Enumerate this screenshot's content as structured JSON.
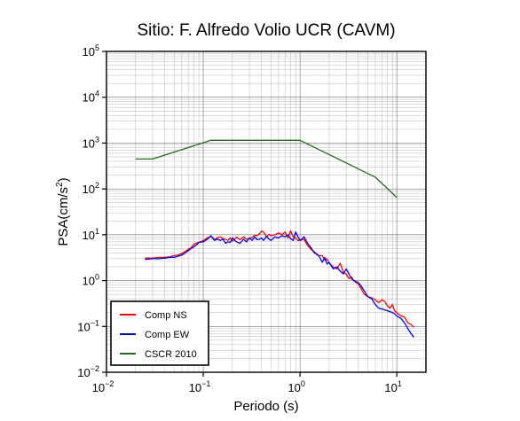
{
  "chart_data": {
    "type": "line",
    "title": "Sitio: F. Alfredo Volio UCR (CAVM)",
    "xlabel": "Periodo (s)",
    "ylabel_main": "PSA(cm/s",
    "ylabel_sup": "2",
    "ylabel_close": ")",
    "x_scale": "log",
    "y_scale": "log",
    "xlim": [
      0.01,
      20
    ],
    "ylim": [
      0.01,
      100000
    ],
    "x_ticks": [
      {
        "value": 0.01,
        "base": "10",
        "exp": "−2"
      },
      {
        "value": 0.1,
        "base": "10",
        "exp": "−1"
      },
      {
        "value": 1,
        "base": "10",
        "exp": "0"
      },
      {
        "value": 10,
        "base": "10",
        "exp": "1"
      }
    ],
    "y_ticks": [
      {
        "value": 0.01,
        "base": "10",
        "exp": "−2"
      },
      {
        "value": 0.1,
        "base": "10",
        "exp": "−1"
      },
      {
        "value": 1,
        "base": "10",
        "exp": "0"
      },
      {
        "value": 10,
        "base": "10",
        "exp": "1"
      },
      {
        "value": 100,
        "base": "10",
        "exp": "2"
      },
      {
        "value": 1000,
        "base": "10",
        "exp": "3"
      },
      {
        "value": 10000,
        "base": "10",
        "exp": "4"
      },
      {
        "value": 100000,
        "base": "10",
        "exp": "5"
      }
    ],
    "grid": true,
    "legend_position": "bottom-left",
    "series": [
      {
        "name": "Comp NS",
        "color": "#ff0000",
        "x": [
          0.025,
          0.03,
          0.035,
          0.04,
          0.045,
          0.05,
          0.055,
          0.06,
          0.065,
          0.07,
          0.075,
          0.08,
          0.085,
          0.09,
          0.1,
          0.11,
          0.12,
          0.13,
          0.14,
          0.15,
          0.16,
          0.17,
          0.18,
          0.19,
          0.2,
          0.22,
          0.24,
          0.26,
          0.28,
          0.3,
          0.32,
          0.34,
          0.36,
          0.38,
          0.4,
          0.42,
          0.45,
          0.48,
          0.5,
          0.55,
          0.6,
          0.65,
          0.7,
          0.75,
          0.8,
          0.85,
          0.9,
          0.95,
          1.0,
          1.1,
          1.2,
          1.3,
          1.4,
          1.5,
          1.6,
          1.7,
          1.8,
          1.9,
          2.0,
          2.2,
          2.4,
          2.6,
          2.8,
          3.0,
          3.2,
          3.4,
          3.6,
          3.8,
          4.0,
          4.3,
          4.6,
          5.0,
          5.5,
          6.0,
          6.5,
          7.0,
          7.5,
          8.0,
          8.5,
          9.0,
          9.5,
          10.0,
          11.0,
          12.0,
          13.0,
          14.0,
          15.0
        ],
        "y": [
          3.1,
          3.1,
          3.2,
          3.2,
          3.3,
          3.5,
          3.6,
          3.9,
          4.3,
          4.8,
          5.2,
          6.2,
          6.6,
          6.8,
          7.5,
          8.5,
          9.2,
          8.0,
          8.5,
          9.0,
          8.2,
          8.0,
          7.5,
          8.5,
          7.2,
          8.8,
          7.8,
          9.0,
          8.0,
          8.2,
          8.8,
          9.8,
          9.5,
          10.5,
          12.0,
          11.5,
          9.0,
          10.2,
          9.5,
          10.0,
          11.0,
          10.0,
          11.5,
          8.5,
          12.2,
          9.0,
          8.5,
          7.5,
          7.5,
          8.0,
          5.8,
          4.8,
          4.3,
          3.6,
          3.5,
          3.5,
          2.8,
          3.0,
          2.4,
          2.0,
          1.8,
          2.4,
          1.5,
          1.4,
          1.1,
          1.2,
          1.0,
          0.9,
          0.85,
          0.65,
          0.5,
          0.45,
          0.42,
          0.38,
          0.33,
          0.38,
          0.35,
          0.28,
          0.25,
          0.3,
          0.22,
          0.2,
          0.17,
          0.16,
          0.12,
          0.11,
          0.095
        ]
      },
      {
        "name": "Comp EW",
        "color": "#0000ff",
        "x": [
          0.025,
          0.03,
          0.035,
          0.04,
          0.045,
          0.05,
          0.055,
          0.06,
          0.065,
          0.07,
          0.075,
          0.08,
          0.085,
          0.09,
          0.1,
          0.11,
          0.12,
          0.13,
          0.14,
          0.15,
          0.16,
          0.17,
          0.18,
          0.19,
          0.2,
          0.22,
          0.24,
          0.26,
          0.28,
          0.3,
          0.32,
          0.34,
          0.36,
          0.38,
          0.4,
          0.42,
          0.45,
          0.48,
          0.5,
          0.55,
          0.6,
          0.65,
          0.7,
          0.75,
          0.8,
          0.85,
          0.9,
          0.95,
          1.0,
          1.1,
          1.2,
          1.3,
          1.4,
          1.5,
          1.6,
          1.7,
          1.8,
          1.9,
          2.0,
          2.2,
          2.4,
          2.6,
          2.8,
          3.0,
          3.2,
          3.4,
          3.6,
          3.8,
          4.0,
          4.3,
          4.6,
          5.0,
          5.5,
          6.0,
          6.5,
          7.0,
          7.5,
          8.0,
          8.5,
          9.0,
          9.5,
          10.0,
          11.0,
          12.0,
          13.0,
          14.0,
          15.0
        ],
        "y": [
          2.9,
          3.0,
          3.0,
          3.1,
          3.2,
          3.2,
          3.4,
          3.6,
          4.0,
          4.5,
          5.0,
          5.5,
          6.0,
          6.8,
          7.0,
          8.0,
          9.5,
          7.5,
          8.0,
          7.5,
          8.0,
          6.5,
          7.0,
          6.8,
          8.5,
          7.0,
          6.5,
          8.0,
          7.0,
          8.5,
          7.5,
          9.0,
          7.8,
          8.0,
          8.5,
          7.5,
          9.2,
          8.0,
          7.5,
          9.0,
          8.5,
          9.5,
          9.0,
          10.0,
          8.2,
          7.5,
          11.5,
          9.0,
          7.5,
          9.0,
          6.5,
          5.2,
          4.0,
          3.8,
          3.2,
          2.5,
          3.2,
          2.3,
          2.5,
          1.8,
          2.0,
          1.6,
          1.4,
          1.8,
          1.4,
          1.1,
          1.0,
          0.95,
          0.9,
          0.75,
          0.6,
          0.45,
          0.4,
          0.3,
          0.25,
          0.24,
          0.23,
          0.22,
          0.21,
          0.2,
          0.19,
          0.17,
          0.15,
          0.12,
          0.09,
          0.07,
          0.058
        ]
      },
      {
        "name": "CSCR 2010",
        "color": "#1f6b1f",
        "x": [
          0.02,
          0.03,
          0.12,
          0.8,
          1.0,
          6.0,
          10.0
        ],
        "y": [
          450,
          450,
          1150,
          1150,
          1150,
          180,
          65
        ]
      }
    ]
  }
}
